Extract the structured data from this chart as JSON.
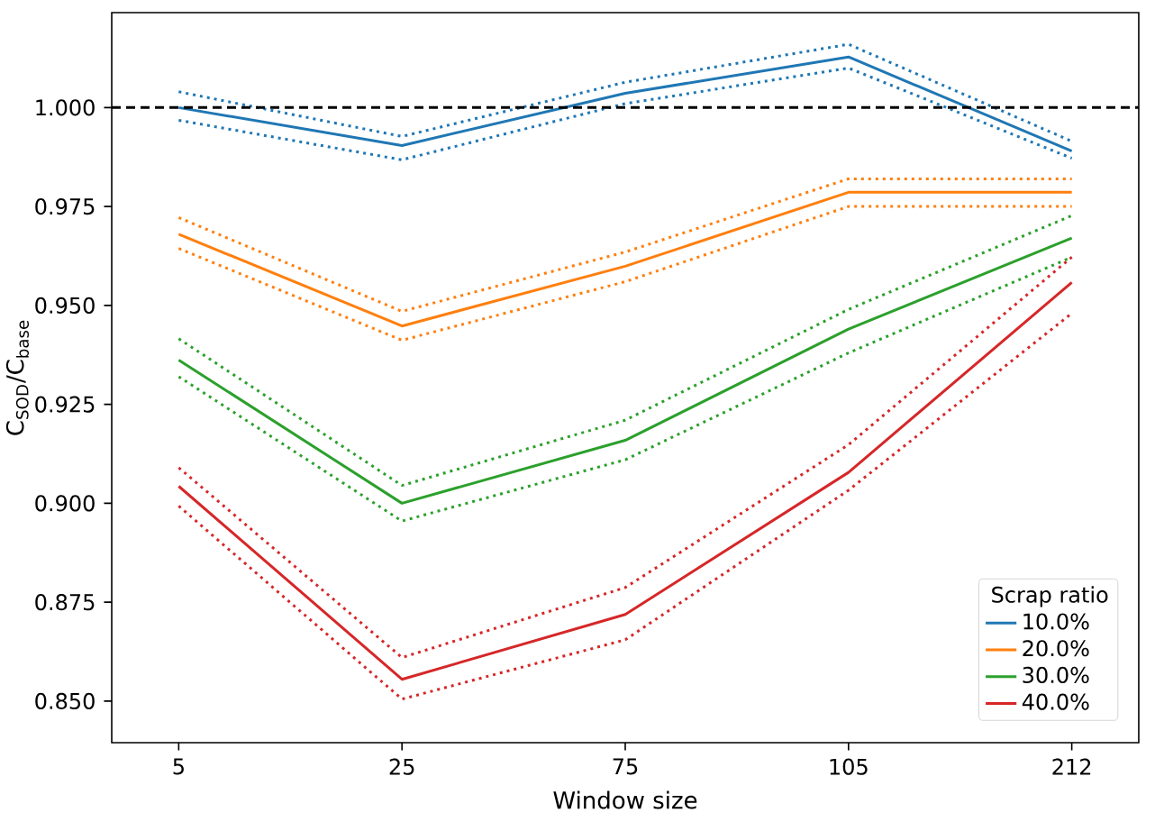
{
  "chart_data": {
    "type": "line",
    "xlabel": "Window size",
    "ylabel": "C$_{SOD}$/C$_{base}$",
    "legend_title": "Scrap ratio",
    "categories": [
      "5",
      "25",
      "75",
      "105",
      "212"
    ],
    "series": [
      {
        "name": "10.0%",
        "color": "#1f77b4",
        "values": [
          1.0,
          0.9904,
          1.0036,
          1.0128,
          0.989
        ]
      },
      {
        "name": "20.0%",
        "color": "#ff7f0e",
        "values": [
          0.968,
          0.9448,
          0.9599,
          0.9786,
          0.9786
        ]
      },
      {
        "name": "30.0%",
        "color": "#2ca02c",
        "values": [
          0.9362,
          0.9,
          0.9159,
          0.944,
          0.967
        ]
      },
      {
        "name": "40.0%",
        "color": "#d62728",
        "values": [
          0.9043,
          0.8555,
          0.8719,
          0.9078,
          0.9558
        ]
      },
      {
        "color": "#1f77b4",
        "line_style": "dotted",
        "values": [
          0.9968,
          0.9868,
          1.001,
          1.01,
          0.9872
        ]
      },
      {
        "color": "#1f77b4",
        "line_style": "dotted",
        "values": [
          1.004,
          0.9927,
          1.0064,
          1.016,
          0.9915
        ]
      },
      {
        "color": "#ff7f0e",
        "line_style": "dotted",
        "values": [
          0.9644,
          0.9412,
          0.956,
          0.975,
          0.975
        ]
      },
      {
        "color": "#ff7f0e",
        "line_style": "dotted",
        "values": [
          0.9722,
          0.9485,
          0.9635,
          0.982,
          0.982
        ]
      },
      {
        "color": "#2ca02c",
        "line_style": "dotted",
        "values": [
          0.932,
          0.8955,
          0.911,
          0.938,
          0.9622
        ]
      },
      {
        "color": "#2ca02c",
        "line_style": "dotted",
        "values": [
          0.9416,
          0.9045,
          0.921,
          0.949,
          0.9727
        ]
      },
      {
        "color": "#d62728",
        "line_style": "dotted",
        "values": [
          0.8993,
          0.8505,
          0.8655,
          0.9033,
          0.948
        ]
      },
      {
        "color": "#d62728",
        "line_style": "dotted",
        "values": [
          0.909,
          0.861,
          0.8787,
          0.9148,
          0.9622
        ]
      }
    ],
    "ylim": [
      0.8395,
      1.024
    ],
    "yticks": [
      {
        "value": 0.85,
        "label": "0.850"
      },
      {
        "value": 0.875,
        "label": "0.875"
      },
      {
        "value": 0.9,
        "label": "0.900"
      },
      {
        "value": 0.925,
        "label": "0.925"
      },
      {
        "value": 0.95,
        "label": "0.950"
      },
      {
        "value": 0.975,
        "label": "0.975"
      },
      {
        "value": 1.0,
        "label": "1.000"
      }
    ],
    "ref_lines": [
      {
        "axis": "y",
        "value": 1.0,
        "color": "#000000",
        "line_style": "dashed"
      }
    ],
    "legend": "bottom right",
    "marker": "none",
    "line_style": "solid",
    "grid": false
  }
}
